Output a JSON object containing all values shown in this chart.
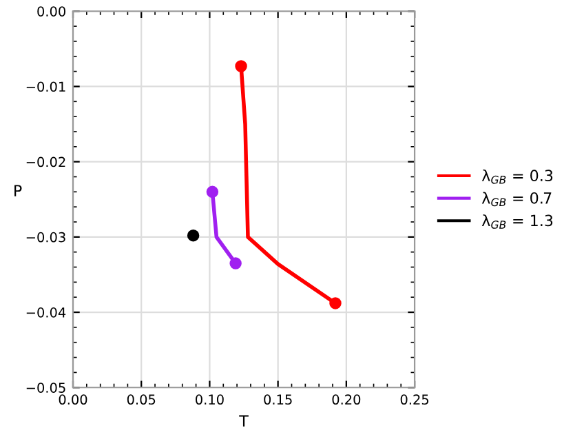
{
  "chart_data": {
    "type": "line",
    "xlabel": "T",
    "ylabel": "P",
    "xlim": [
      0,
      0.25
    ],
    "ylim": [
      -0.05,
      0
    ],
    "xticks": [
      {
        "value": 0,
        "label": "0.00"
      },
      {
        "value": 0.05,
        "label": "0.05"
      },
      {
        "value": 0.1,
        "label": "0.10"
      },
      {
        "value": 0.15,
        "label": "0.15"
      },
      {
        "value": 0.2,
        "label": "0.20"
      },
      {
        "value": 0.25,
        "label": "0.25"
      }
    ],
    "yticks": [
      {
        "value": 0,
        "label": "0.00"
      },
      {
        "value": -0.01,
        "label": "−0.01"
      },
      {
        "value": -0.02,
        "label": "−0.02"
      },
      {
        "value": -0.03,
        "label": "−0.03"
      },
      {
        "value": -0.04,
        "label": "−0.04"
      },
      {
        "value": -0.05,
        "label": "−0.05"
      }
    ],
    "grid": true,
    "legend": "right",
    "marker": "circle",
    "line_style": "solid",
    "series": [
      {
        "name": "λ$_{GB}$ = 0.3",
        "color": "#ff0000",
        "marker": "none",
        "x": [
          0.123,
          0.126,
          0.128,
          0.15,
          0.192
        ],
        "values": [
          -0.0073,
          -0.015,
          -0.03,
          -0.0336,
          -0.0388
        ]
      },
      {
        "name": "λ$_{GB}$ = 0.7",
        "color": "#a020f0",
        "marker": "none",
        "x": [
          0.102,
          0.105,
          0.119
        ],
        "values": [
          -0.024,
          -0.03,
          -0.0335
        ]
      },
      {
        "name": "λ$_{GB}$ = 1.3",
        "color": "#000000",
        "type": "scatter",
        "x": [
          0.088
        ],
        "values": [
          -0.0298
        ]
      },
      {
        "color": "#ff0000",
        "type": "scatter",
        "x": [
          0.123,
          0.192
        ],
        "values": [
          -0.0073,
          -0.0388
        ]
      },
      {
        "color": "#a020f0",
        "type": "scatter",
        "x": [
          0.102,
          0.119
        ],
        "values": [
          -0.024,
          -0.0335
        ]
      }
    ]
  }
}
